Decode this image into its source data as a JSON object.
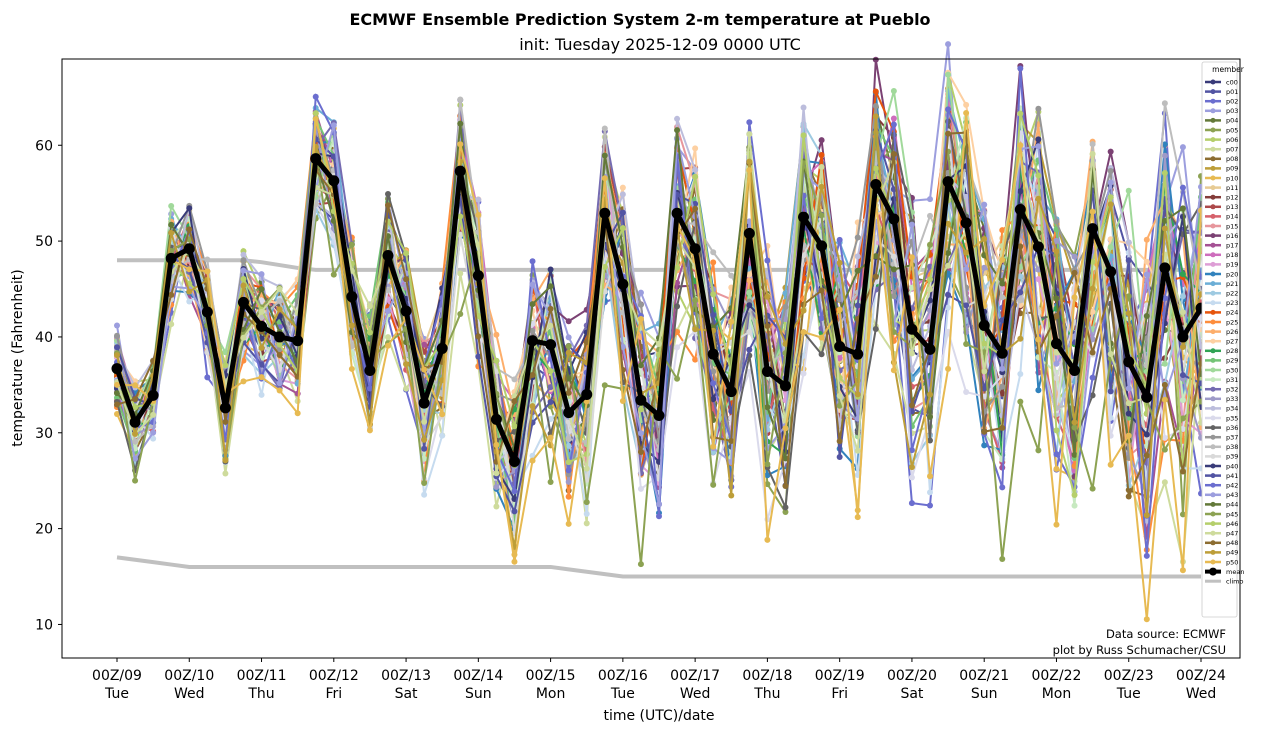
{
  "chart_data": {
    "type": "line",
    "title": "ECMWF Ensemble Prediction System 2-m temperature at Pueblo",
    "subtitle": "init: Tuesday 2025-12-09 0000 UTC",
    "xlabel": "time (UTC)/date",
    "ylabel": "temperature (Fahrenheit)",
    "ylim": [
      6.5,
      69
    ],
    "yticks": [
      10,
      20,
      30,
      40,
      50,
      60
    ],
    "x_step_hours": 6,
    "n_points": 61,
    "xticks": [
      {
        "line1": "00Z/09",
        "line2": "Tue"
      },
      {
        "line1": "00Z/10",
        "line2": "Wed"
      },
      {
        "line1": "00Z/11",
        "line2": "Thu"
      },
      {
        "line1": "00Z/12",
        "line2": "Fri"
      },
      {
        "line1": "00Z/13",
        "line2": "Sat"
      },
      {
        "line1": "00Z/14",
        "line2": "Sun"
      },
      {
        "line1": "00Z/15",
        "line2": "Mon"
      },
      {
        "line1": "00Z/16",
        "line2": "Tue"
      },
      {
        "line1": "00Z/17",
        "line2": "Wed"
      },
      {
        "line1": "00Z/18",
        "line2": "Thu"
      },
      {
        "line1": "00Z/19",
        "line2": "Fri"
      },
      {
        "line1": "00Z/20",
        "line2": "Sat"
      },
      {
        "line1": "00Z/21",
        "line2": "Sun"
      },
      {
        "line1": "00Z/22",
        "line2": "Mon"
      },
      {
        "line1": "00Z/23",
        "line2": "Tue"
      },
      {
        "line1": "00Z/24",
        "line2": "Wed"
      }
    ],
    "legend": {
      "title": "member",
      "placement": "right"
    },
    "mean": {
      "name": "mean",
      "color": "#000000",
      "values": [
        36.7,
        31.1,
        33.9,
        48.2,
        49.2,
        42.6,
        32.6,
        43.6,
        41.1,
        40.0,
        39.6,
        58.6,
        56.3,
        44.2,
        36.5,
        48.5,
        42.7,
        33.1,
        38.8,
        57.3,
        46.4,
        31.4,
        27.0,
        39.6,
        39.2,
        32.1,
        34.0,
        52.9,
        45.5,
        33.4,
        31.8,
        52.9,
        49.2,
        38.2,
        34.3,
        50.8,
        36.4,
        34.9,
        52.5,
        49.5,
        39.0,
        38.2,
        55.9,
        52.3,
        40.8,
        38.7,
        56.2,
        51.9,
        41.2,
        38.3,
        53.3,
        49.4,
        39.3,
        36.5,
        51.3,
        46.8,
        37.4,
        33.7,
        47.2,
        40.0,
        43.0
      ]
    },
    "climo": {
      "name": "climo",
      "color": "#c0c0c0",
      "high": [
        48,
        48,
        48,
        48,
        48,
        48,
        48,
        48,
        47.8,
        47.5,
        47.2,
        47,
        47,
        47,
        47,
        47,
        47,
        47,
        47,
        47,
        47,
        47,
        47,
        47,
        47,
        47,
        47,
        47,
        47,
        47,
        47,
        47,
        47,
        47,
        47,
        47,
        47,
        47,
        47,
        47,
        47,
        47,
        47,
        47,
        47,
        47,
        47,
        47,
        47,
        47,
        47,
        47,
        47,
        47,
        47,
        47,
        47,
        47,
        47,
        47,
        47
      ],
      "low": [
        17,
        16.75,
        16.5,
        16.25,
        16,
        16,
        16,
        16,
        16,
        16,
        16,
        16,
        16,
        16,
        16,
        16,
        16,
        16,
        16,
        16,
        16,
        16,
        16,
        16,
        16,
        15.75,
        15.5,
        15.25,
        15,
        15,
        15,
        15,
        15,
        15,
        15,
        15,
        15,
        15,
        15,
        15,
        15,
        15,
        15,
        15,
        15,
        15,
        15,
        15,
        15,
        15,
        15,
        15,
        15,
        15,
        15,
        15,
        15,
        15,
        15,
        15,
        15
      ]
    },
    "members": [
      {
        "name": "c00",
        "color": "#393b79",
        "spread": 0.9,
        "offset": 0.5
      },
      {
        "name": "p01",
        "color": "#5254a3",
        "spread": 1.1,
        "offset": -0.8
      },
      {
        "name": "p02",
        "color": "#6b6ecf",
        "spread": 1.6,
        "offset": -2.0
      },
      {
        "name": "p03",
        "color": "#9c9ede",
        "spread": 1.4,
        "offset": 1.5
      },
      {
        "name": "p04",
        "color": "#637939",
        "spread": 1.0,
        "offset": 0.3
      },
      {
        "name": "p05",
        "color": "#8ca252",
        "spread": 1.3,
        "offset": -1.2
      },
      {
        "name": "p06",
        "color": "#b5cf6b",
        "spread": 1.2,
        "offset": 0.8
      },
      {
        "name": "p07",
        "color": "#cedb9c",
        "spread": 1.5,
        "offset": -3.0
      },
      {
        "name": "p08",
        "color": "#8c6d31",
        "spread": 1.1,
        "offset": -0.5
      },
      {
        "name": "p09",
        "color": "#bd9e39",
        "spread": 1.0,
        "offset": 1.0
      },
      {
        "name": "p10",
        "color": "#e7ba52",
        "spread": 1.4,
        "offset": -2.4
      },
      {
        "name": "p11",
        "color": "#e7cb94",
        "spread": 1.1,
        "offset": 0.6
      },
      {
        "name": "p12",
        "color": "#843c39",
        "spread": 0.9,
        "offset": -0.3
      },
      {
        "name": "p13",
        "color": "#ad494a",
        "spread": 1.0,
        "offset": 0.2
      },
      {
        "name": "p14",
        "color": "#d6616b",
        "spread": 1.0,
        "offset": -0.6
      },
      {
        "name": "p15",
        "color": "#e7969c",
        "spread": 1.1,
        "offset": 0.4
      },
      {
        "name": "p16",
        "color": "#7b4173",
        "spread": 1.3,
        "offset": 1.1
      },
      {
        "name": "p17",
        "color": "#a55194",
        "spread": 1.2,
        "offset": -0.9
      },
      {
        "name": "p18",
        "color": "#ce6dbd",
        "spread": 1.0,
        "offset": 0.7
      },
      {
        "name": "p19",
        "color": "#de9ed6",
        "spread": 1.0,
        "offset": -0.2
      },
      {
        "name": "p20",
        "color": "#3182bd",
        "spread": 1.2,
        "offset": -1.0
      },
      {
        "name": "p21",
        "color": "#6baed6",
        "spread": 1.1,
        "offset": 0.9
      },
      {
        "name": "p22",
        "color": "#9ecae1",
        "spread": 1.3,
        "offset": -1.5
      },
      {
        "name": "p23",
        "color": "#c6dbef",
        "spread": 1.5,
        "offset": -1.8
      },
      {
        "name": "p24",
        "color": "#e6550d",
        "spread": 1.0,
        "offset": 0.1
      },
      {
        "name": "p25",
        "color": "#fd8d3c",
        "spread": 1.4,
        "offset": -1.1
      },
      {
        "name": "p26",
        "color": "#fdae6b",
        "spread": 1.2,
        "offset": 1.3
      },
      {
        "name": "p27",
        "color": "#fdd0a2",
        "spread": 1.2,
        "offset": 2.0
      },
      {
        "name": "p28",
        "color": "#31a354",
        "spread": 1.0,
        "offset": -0.4
      },
      {
        "name": "p29",
        "color": "#74c476",
        "spread": 1.1,
        "offset": 0.5
      },
      {
        "name": "p30",
        "color": "#a1d99b",
        "spread": 1.3,
        "offset": 1.6
      },
      {
        "name": "p31",
        "color": "#c7e9c0",
        "spread": 1.2,
        "offset": -0.7
      },
      {
        "name": "p32",
        "color": "#756bb1",
        "spread": 1.2,
        "offset": 0.3
      },
      {
        "name": "p33",
        "color": "#9e9ac8",
        "spread": 1.1,
        "offset": -0.1
      },
      {
        "name": "p34",
        "color": "#bcbddc",
        "spread": 1.2,
        "offset": 0.9
      },
      {
        "name": "p35",
        "color": "#dadaeb",
        "spread": 1.5,
        "offset": -2.6
      },
      {
        "name": "p36",
        "color": "#636363",
        "spread": 1.4,
        "offset": -1.6
      },
      {
        "name": "p37",
        "color": "#969696",
        "spread": 1.1,
        "offset": 1.2
      },
      {
        "name": "p38",
        "color": "#bdbdbd",
        "spread": 1.2,
        "offset": 1.4
      },
      {
        "name": "p39",
        "color": "#d9d9d9",
        "spread": 1.1,
        "offset": -0.9
      },
      {
        "name": "p40",
        "color": "#393b79",
        "spread": 1.0,
        "offset": 0.8
      },
      {
        "name": "p41",
        "color": "#5254a3",
        "spread": 1.2,
        "offset": -1.3
      },
      {
        "name": "p42",
        "color": "#6b6ecf",
        "spread": 1.4,
        "offset": -0.4
      },
      {
        "name": "p43",
        "color": "#9c9ede",
        "spread": 1.2,
        "offset": 0.2
      },
      {
        "name": "p44",
        "color": "#637939",
        "spread": 1.0,
        "offset": 0.6
      },
      {
        "name": "p45",
        "color": "#8ca252",
        "spread": 1.8,
        "offset": -4.5
      },
      {
        "name": "p46",
        "color": "#b5cf6b",
        "spread": 1.1,
        "offset": -0.2
      },
      {
        "name": "p47",
        "color": "#cedb9c",
        "spread": 1.2,
        "offset": 1.0
      },
      {
        "name": "p48",
        "color": "#8c6d31",
        "spread": 1.1,
        "offset": -0.6
      },
      {
        "name": "p49",
        "color": "#bd9e39",
        "spread": 1.3,
        "offset": -1.4
      },
      {
        "name": "p50",
        "color": "#e7ba52",
        "spread": 1.6,
        "offset": -3.5
      }
    ]
  },
  "legend_extra": {
    "mean_label": "mean",
    "climo_label": "climo"
  },
  "notes": {
    "line1": "Data source: ECMWF",
    "line2": "plot by Russ Schumacher/CSU"
  }
}
